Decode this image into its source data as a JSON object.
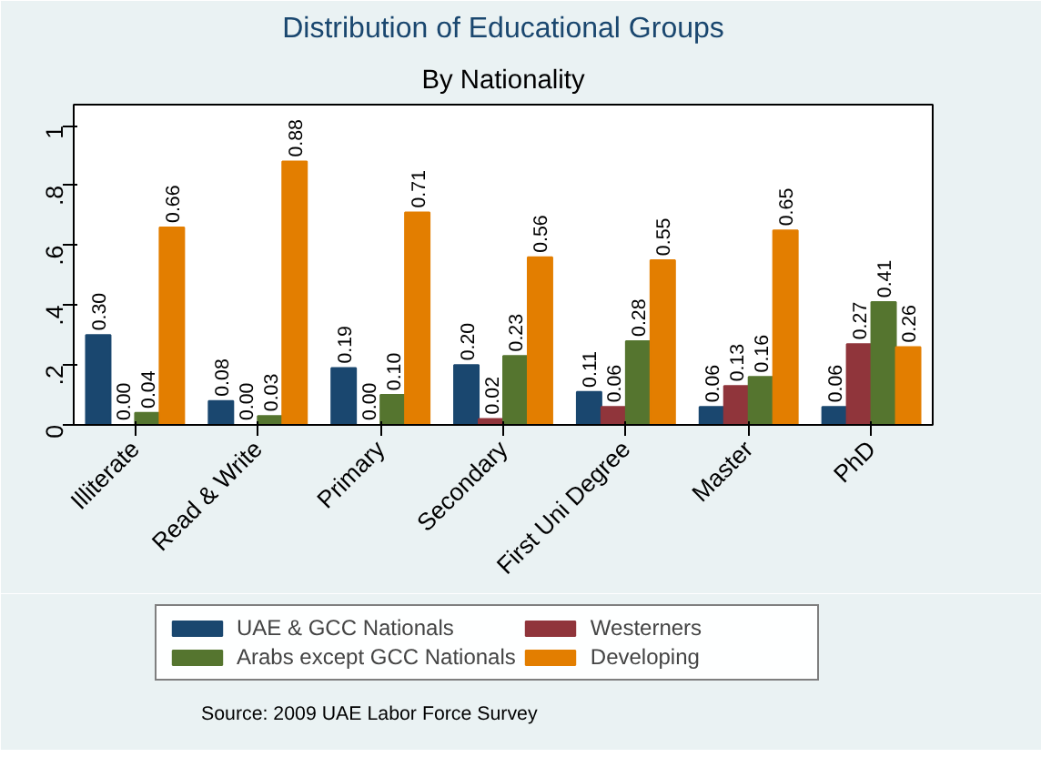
{
  "chart_data": {
    "type": "bar",
    "title": "Distribution of Educational Groups",
    "subtitle": "By Nationality",
    "categories": [
      "Illiterate",
      "Read & Write",
      "Primary",
      "Secondary",
      "First Uni Degree",
      "Master",
      "PhD"
    ],
    "series": [
      {
        "name": "UAE & GCC Nationals",
        "color": "#1a476f",
        "values": [
          0.3,
          0.08,
          0.19,
          0.2,
          0.11,
          0.06,
          0.06
        ],
        "value_labels": [
          "0.30",
          "0.08",
          "0.19",
          "0.20",
          "0.11",
          "0.06",
          "0.06"
        ]
      },
      {
        "name": "Westerners",
        "color": "#90353b",
        "values": [
          0.0,
          0.0,
          0.0,
          0.02,
          0.06,
          0.13,
          0.27
        ],
        "value_labels": [
          "0.00",
          "0.00",
          "0.00",
          "0.02",
          "0.06",
          "0.13",
          "0.27"
        ]
      },
      {
        "name": "Arabs except GCC Nationals",
        "color": "#55752f",
        "values": [
          0.04,
          0.03,
          0.1,
          0.23,
          0.28,
          0.16,
          0.41
        ],
        "value_labels": [
          "0.04",
          "0.03",
          "0.10",
          "0.23",
          "0.28",
          "0.16",
          "0.41"
        ]
      },
      {
        "name": "Developing",
        "color": "#e37e00",
        "values": [
          0.66,
          0.88,
          0.71,
          0.56,
          0.55,
          0.65,
          0.26
        ],
        "value_labels": [
          "0.66",
          "0.88",
          "0.71",
          "0.56",
          "0.55",
          "0.65",
          "0.26"
        ]
      }
    ],
    "ylim": [
      0,
      1.07
    ],
    "yticks": [
      {
        "value": 0,
        "label": "0"
      },
      {
        "value": 0.2,
        "label": ".2"
      },
      {
        "value": 0.4,
        "label": ".4"
      },
      {
        "value": 0.6,
        "label": ".6"
      },
      {
        "value": 0.8,
        "label": ".8"
      },
      {
        "value": 1,
        "label": "1"
      }
    ],
    "grid": false,
    "legend": "bottom",
    "annotations": [
      "Source: 2009 UAE Labor Force Survey"
    ]
  }
}
